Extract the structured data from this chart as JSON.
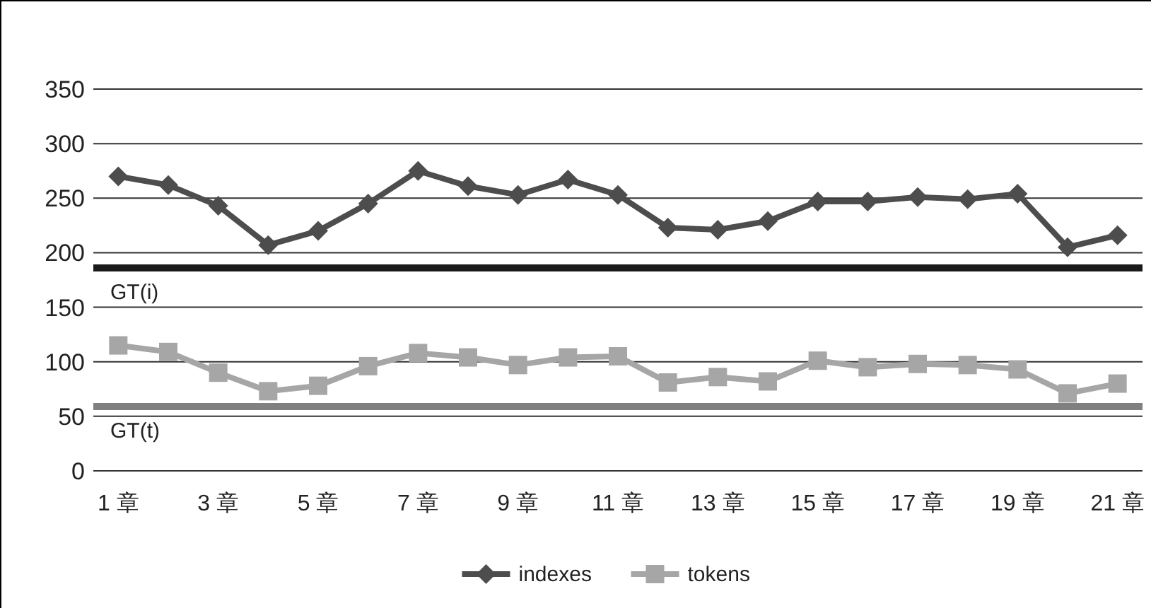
{
  "chart_data": {
    "type": "line",
    "categories": [
      "1 章",
      null,
      "3 章",
      null,
      "5 章",
      null,
      "7 章",
      null,
      "9 章",
      null,
      "11 章",
      null,
      "13 章",
      null,
      "15 章",
      null,
      "17 章",
      null,
      "19 章",
      null,
      "21 章"
    ],
    "series": [
      {
        "name": "indexes",
        "color": "#4d4d4d",
        "marker": "diamond",
        "values": [
          270,
          262,
          243,
          207,
          220,
          245,
          275,
          261,
          253,
          267,
          253,
          223,
          221,
          229,
          247,
          247,
          251,
          249,
          254,
          205,
          216
        ]
      },
      {
        "name": "tokens",
        "color": "#a6a6a6",
        "marker": "square",
        "values": [
          115,
          109,
          90,
          73,
          78,
          96,
          108,
          104,
          97,
          104,
          105,
          81,
          86,
          82,
          101,
          95,
          98,
          97,
          93,
          71,
          80
        ]
      }
    ],
    "ylim": [
      0,
      350
    ],
    "yticks": [
      0,
      50,
      100,
      150,
      200,
      250,
      300,
      350
    ],
    "ref_lines": [
      {
        "axis": "y",
        "value": 186,
        "label": "GT(i)",
        "color": "#1a1a1a"
      },
      {
        "axis": "y",
        "value": 59,
        "label": "GT(t)",
        "color": "#808080"
      }
    ],
    "grid": "y",
    "legend": "bottom",
    "line_style": "solid"
  }
}
